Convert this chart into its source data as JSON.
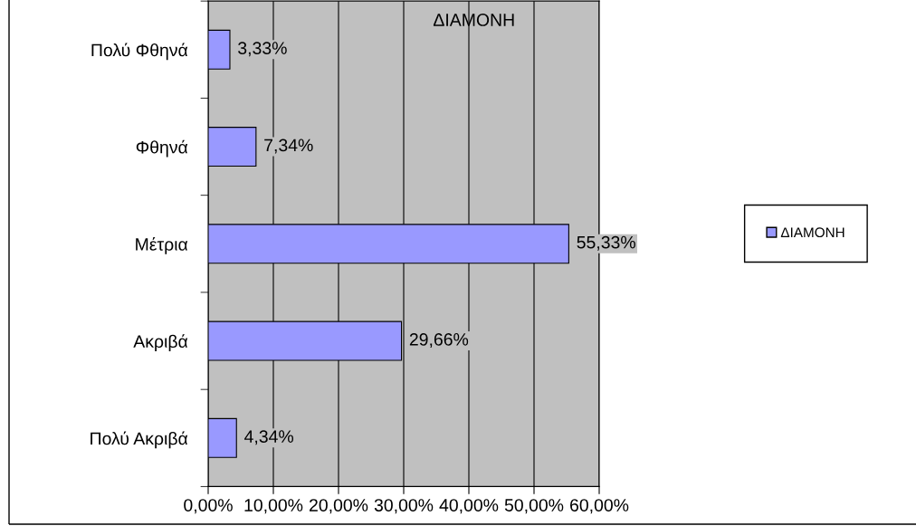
{
  "chart_data": {
    "type": "bar",
    "orientation": "horizontal",
    "title": "ΔΙΑΜΟΝΗ",
    "categories": [
      "Πολύ Φθηνά",
      "Φθηνά",
      "Μέτρια",
      "Ακριβά",
      "Πολύ Ακριβά"
    ],
    "series": [
      {
        "name": "ΔΙΑΜΟΝΗ",
        "color": "#9999ff",
        "values": [
          3.33,
          7.34,
          55.33,
          29.66,
          4.34
        ],
        "value_labels": [
          "3,33%",
          "7,34%",
          "55,33%",
          "29,66%",
          "4,34%"
        ]
      }
    ],
    "xlim": [
      0,
      60
    ],
    "xticks": [
      {
        "value": 0,
        "label": "0,00%"
      },
      {
        "value": 10,
        "label": "10,00%"
      },
      {
        "value": 20,
        "label": "20,00%"
      },
      {
        "value": 30,
        "label": "30,00%"
      },
      {
        "value": 40,
        "label": "40,00%"
      },
      {
        "value": 50,
        "label": "50,00%"
      },
      {
        "value": 60,
        "label": "60,00%"
      }
    ],
    "grid": "x",
    "legend": "right"
  }
}
